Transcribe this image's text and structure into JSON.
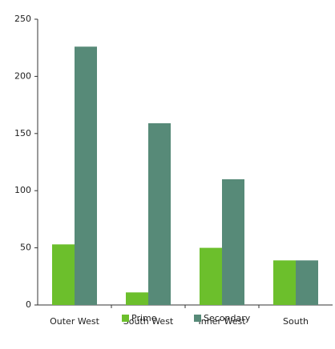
{
  "chart_data": {
    "type": "bar",
    "categories": [
      "Outer West",
      "South West",
      "Inner West",
      "South"
    ],
    "series": [
      {
        "name": "Prime",
        "color": "#6cbf2c",
        "values": [
          53,
          11,
          50,
          39
        ]
      },
      {
        "name": "Secondary",
        "color": "#578a78",
        "values": [
          226,
          159,
          110,
          39
        ]
      }
    ],
    "ylim": [
      0,
      250
    ],
    "yticks": [
      0,
      50,
      100,
      150,
      200,
      250
    ],
    "grid": false
  }
}
